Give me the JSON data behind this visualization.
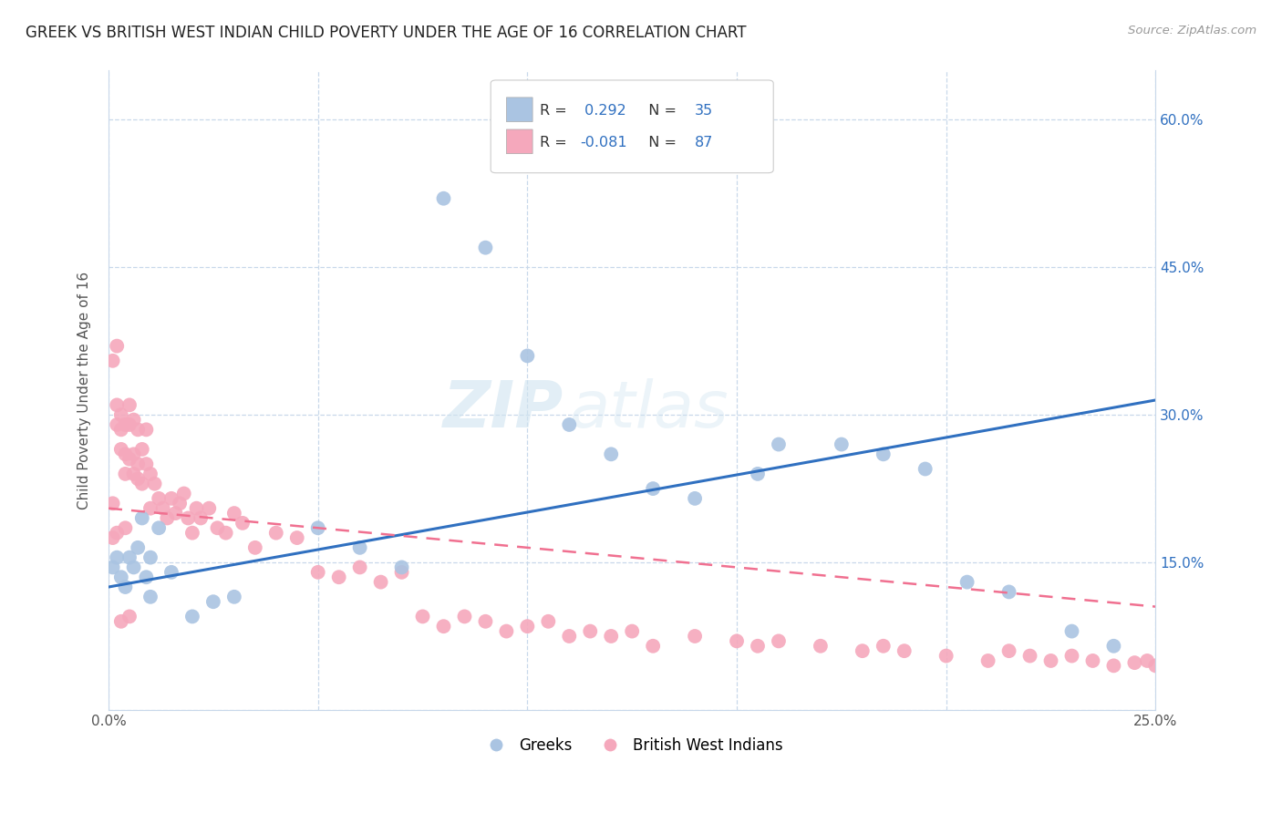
{
  "title": "GREEK VS BRITISH WEST INDIAN CHILD POVERTY UNDER THE AGE OF 16 CORRELATION CHART",
  "source": "Source: ZipAtlas.com",
  "ylabel": "Child Poverty Under the Age of 16",
  "xlim": [
    0.0,
    0.25
  ],
  "ylim": [
    0.0,
    0.65
  ],
  "greek_color": "#aac4e2",
  "bwi_color": "#f5a8bc",
  "greek_line_color": "#3070c0",
  "bwi_line_color": "#f07090",
  "greek_R": 0.292,
  "greek_N": 35,
  "bwi_R": -0.081,
  "bwi_N": 87,
  "watermark_zip": "ZIP",
  "watermark_atlas": "atlas",
  "background_color": "#ffffff",
  "grid_color": "#c8d8ea",
  "legend_labels": [
    "Greeks",
    "British West Indians"
  ],
  "greek_line_x0": 0.0,
  "greek_line_y0": 0.125,
  "greek_line_x1": 0.25,
  "greek_line_y1": 0.315,
  "bwi_line_x0": 0.0,
  "bwi_line_y0": 0.205,
  "bwi_line_x1": 0.25,
  "bwi_line_y1": 0.105,
  "greeks_x": [
    0.001,
    0.002,
    0.003,
    0.004,
    0.005,
    0.006,
    0.007,
    0.008,
    0.009,
    0.01,
    0.012,
    0.015,
    0.02,
    0.025,
    0.03,
    0.05,
    0.06,
    0.07,
    0.08,
    0.09,
    0.1,
    0.11,
    0.12,
    0.13,
    0.14,
    0.155,
    0.16,
    0.175,
    0.185,
    0.195,
    0.205,
    0.215,
    0.23,
    0.24,
    0.01
  ],
  "greeks_y": [
    0.145,
    0.155,
    0.135,
    0.125,
    0.155,
    0.145,
    0.165,
    0.195,
    0.135,
    0.155,
    0.185,
    0.14,
    0.095,
    0.11,
    0.115,
    0.185,
    0.165,
    0.145,
    0.52,
    0.47,
    0.36,
    0.29,
    0.26,
    0.225,
    0.215,
    0.24,
    0.27,
    0.27,
    0.26,
    0.245,
    0.13,
    0.12,
    0.08,
    0.065,
    0.115
  ],
  "bwi_x": [
    0.001,
    0.001,
    0.002,
    0.002,
    0.002,
    0.003,
    0.003,
    0.003,
    0.004,
    0.004,
    0.004,
    0.005,
    0.005,
    0.005,
    0.006,
    0.006,
    0.006,
    0.007,
    0.007,
    0.007,
    0.008,
    0.008,
    0.009,
    0.009,
    0.01,
    0.01,
    0.011,
    0.012,
    0.013,
    0.014,
    0.015,
    0.016,
    0.017,
    0.018,
    0.019,
    0.02,
    0.021,
    0.022,
    0.024,
    0.026,
    0.028,
    0.03,
    0.032,
    0.035,
    0.04,
    0.045,
    0.05,
    0.055,
    0.06,
    0.065,
    0.07,
    0.075,
    0.08,
    0.085,
    0.09,
    0.095,
    0.1,
    0.105,
    0.11,
    0.115,
    0.12,
    0.125,
    0.13,
    0.14,
    0.15,
    0.155,
    0.16,
    0.17,
    0.18,
    0.185,
    0.19,
    0.2,
    0.21,
    0.215,
    0.22,
    0.225,
    0.23,
    0.235,
    0.24,
    0.245,
    0.248,
    0.25,
    0.001,
    0.002,
    0.003,
    0.004,
    0.005
  ],
  "bwi_y": [
    0.21,
    0.355,
    0.31,
    0.29,
    0.37,
    0.285,
    0.265,
    0.3,
    0.26,
    0.24,
    0.29,
    0.255,
    0.31,
    0.29,
    0.26,
    0.24,
    0.295,
    0.235,
    0.285,
    0.25,
    0.23,
    0.265,
    0.285,
    0.25,
    0.205,
    0.24,
    0.23,
    0.215,
    0.205,
    0.195,
    0.215,
    0.2,
    0.21,
    0.22,
    0.195,
    0.18,
    0.205,
    0.195,
    0.205,
    0.185,
    0.18,
    0.2,
    0.19,
    0.165,
    0.18,
    0.175,
    0.14,
    0.135,
    0.145,
    0.13,
    0.14,
    0.095,
    0.085,
    0.095,
    0.09,
    0.08,
    0.085,
    0.09,
    0.075,
    0.08,
    0.075,
    0.08,
    0.065,
    0.075,
    0.07,
    0.065,
    0.07,
    0.065,
    0.06,
    0.065,
    0.06,
    0.055,
    0.05,
    0.06,
    0.055,
    0.05,
    0.055,
    0.05,
    0.045,
    0.048,
    0.05,
    0.045,
    0.175,
    0.18,
    0.09,
    0.185,
    0.095
  ]
}
